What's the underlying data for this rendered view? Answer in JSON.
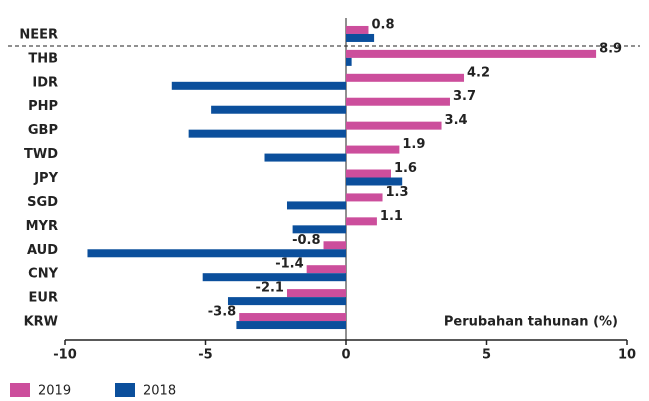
{
  "chart_data": {
    "type": "hbar",
    "categories": [
      "NEER",
      "THB",
      "IDR",
      "PHP",
      "GBP",
      "TWD",
      "JPY",
      "SGD",
      "MYR",
      "AUD",
      "CNY",
      "EUR",
      "KRW"
    ],
    "series": [
      {
        "name": "2019",
        "color": "#cc4e9c",
        "values": [
          0.8,
          8.9,
          4.2,
          3.7,
          3.4,
          1.9,
          1.6,
          1.3,
          1.1,
          -0.8,
          -1.4,
          -2.1,
          -3.8
        ]
      },
      {
        "name": "2018",
        "color": "#0b4f9c",
        "values": [
          1.0,
          0.2,
          -6.2,
          -4.8,
          -5.6,
          -2.9,
          2.0,
          -2.1,
          -1.9,
          -9.2,
          -5.1,
          -4.2,
          -3.9
        ]
      }
    ],
    "x_label": "Perubahan tahunan (%)",
    "xlim": [
      -10,
      10
    ],
    "xticks": [
      -10,
      -5,
      0,
      5,
      10
    ],
    "data_labels_series": 0
  }
}
